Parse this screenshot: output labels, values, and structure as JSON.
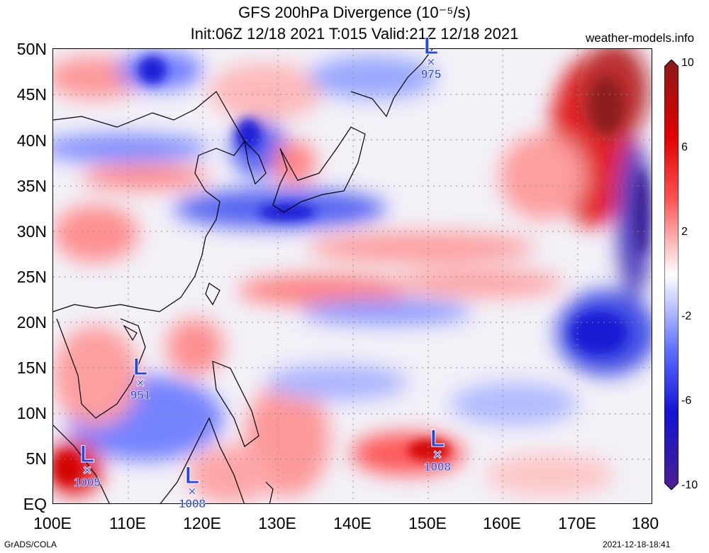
{
  "header": {
    "title_line1": "GFS 200hPa Divergence (10⁻⁵/s)",
    "title_line2": "Init:06Z 12/18 2021 T:015 Valid:21Z 12/18 2021",
    "site": "weather-models.info"
  },
  "axes": {
    "y_labels": [
      "50N",
      "45N",
      "40N",
      "35N",
      "30N",
      "25N",
      "20N",
      "15N",
      "10N",
      "5N",
      "EQ"
    ],
    "x_labels": [
      "100E",
      "110E",
      "120E",
      "130E",
      "140E",
      "150E",
      "160E",
      "170E",
      "180"
    ]
  },
  "colorbar": {
    "labels": [
      "10",
      "6",
      "2",
      "-2",
      "-6",
      "-10"
    ],
    "colors": [
      "#4b1f8f",
      "#1414d2",
      "#5a6cff",
      "#c8d0ff",
      "#ffffff",
      "#ffc8c8",
      "#ff5050",
      "#e00000",
      "#8b1a1a"
    ]
  },
  "lows": [
    {
      "pressure": "975",
      "lon": 150.5,
      "lat": 48.5
    },
    {
      "pressure": "951",
      "lon": 111.8,
      "lat": 12.8
    },
    {
      "pressure": "1005",
      "lon": 104.5,
      "lat": 3.2
    },
    {
      "pressure": "1008",
      "lon": 118.5,
      "lat": 0.8
    },
    {
      "pressure": "1008",
      "lon": 151.0,
      "lat": 4.8
    }
  ],
  "low_symbol": "L",
  "center_symbol": "×",
  "footer": {
    "left": "GrADS/COLA",
    "right": "2021-12-18-18:41"
  }
}
